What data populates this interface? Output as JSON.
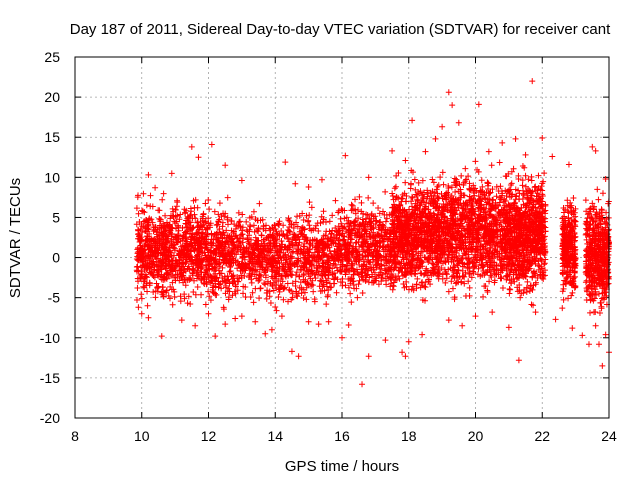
{
  "chart_data": {
    "type": "scatter",
    "title": "Day 187 of 2011, Sidereal Day-to-day VTEC variation (SDTVAR) for receiver cant",
    "xlabel": "GPS time / hours",
    "ylabel": "SDTVAR / TECUs",
    "xlim": [
      8,
      24
    ],
    "ylim": [
      -20,
      25
    ],
    "xticks": [
      8,
      10,
      12,
      14,
      16,
      18,
      20,
      22,
      24
    ],
    "yticks": [
      -20,
      -15,
      -10,
      -5,
      0,
      5,
      10,
      15,
      20,
      25
    ],
    "xtick_labels": [
      "8",
      "10",
      "12",
      "14",
      "16",
      "18",
      "20",
      "22",
      "24"
    ],
    "ytick_labels": [
      "-20",
      "-15",
      "-10",
      "-5",
      "0",
      "5",
      "10",
      "15",
      "20",
      "25"
    ],
    "grid": true,
    "marker": "+",
    "color": "#ff0000",
    "series": [
      {
        "name": "SDTVAR",
        "points": [
          [
            9.9,
            -6.2
          ],
          [
            10.0,
            -7.0
          ],
          [
            10.2,
            -7.5
          ],
          [
            10.6,
            -9.8
          ],
          [
            11.2,
            -7.8
          ],
          [
            11.6,
            -8.5
          ],
          [
            12.0,
            -7.0
          ],
          [
            12.2,
            -9.8
          ],
          [
            12.5,
            -8.3
          ],
          [
            12.8,
            -7.6
          ],
          [
            13.0,
            -7.3
          ],
          [
            13.4,
            -8.0
          ],
          [
            13.7,
            -9.5
          ],
          [
            13.9,
            -9.0
          ],
          [
            14.2,
            -7.3
          ],
          [
            14.5,
            -11.7
          ],
          [
            14.7,
            -12.3
          ],
          [
            15.0,
            -8.0
          ],
          [
            15.3,
            -8.3
          ],
          [
            15.6,
            -8.0
          ],
          [
            16.0,
            -10.0
          ],
          [
            16.2,
            -8.4
          ],
          [
            16.6,
            -15.8
          ],
          [
            16.8,
            -12.3
          ],
          [
            17.3,
            -10.3
          ],
          [
            17.8,
            -11.8
          ],
          [
            17.9,
            -12.3
          ],
          [
            18.0,
            -10.5
          ],
          [
            18.4,
            -9.6
          ],
          [
            19.2,
            -7.8
          ],
          [
            19.6,
            -8.5
          ],
          [
            20.0,
            -7.3
          ],
          [
            20.5,
            -6.8
          ],
          [
            21.0,
            -8.7
          ],
          [
            21.3,
            -12.8
          ],
          [
            21.8,
            -6.8
          ],
          [
            22.4,
            -7.7
          ],
          [
            22.6,
            -6.3
          ],
          [
            22.9,
            -8.8
          ],
          [
            23.2,
            -9.7
          ],
          [
            23.4,
            -10.8
          ],
          [
            23.6,
            -8.5
          ],
          [
            23.7,
            -10.8
          ],
          [
            23.8,
            -13.5
          ],
          [
            23.9,
            -9.6
          ],
          [
            24.0,
            -11.8
          ],
          [
            10.2,
            10.3
          ],
          [
            10.4,
            8.7
          ],
          [
            10.9,
            10.5
          ],
          [
            11.5,
            13.8
          ],
          [
            11.7,
            12.5
          ],
          [
            12.1,
            14.1
          ],
          [
            12.5,
            11.5
          ],
          [
            13.0,
            9.6
          ],
          [
            14.3,
            11.9
          ],
          [
            14.6,
            9.2
          ],
          [
            15.0,
            8.8
          ],
          [
            15.4,
            9.7
          ],
          [
            16.1,
            12.7
          ],
          [
            16.8,
            10.0
          ],
          [
            17.5,
            13.3
          ],
          [
            17.9,
            12.1
          ],
          [
            18.1,
            17.1
          ],
          [
            18.5,
            13.2
          ],
          [
            18.8,
            14.8
          ],
          [
            19.0,
            16.3
          ],
          [
            19.2,
            20.6
          ],
          [
            19.3,
            19.0
          ],
          [
            19.5,
            16.8
          ],
          [
            20.1,
            19.1
          ],
          [
            20.4,
            13.2
          ],
          [
            20.8,
            14.3
          ],
          [
            21.2,
            14.8
          ],
          [
            21.5,
            12.8
          ],
          [
            21.7,
            22.0
          ],
          [
            22.0,
            14.9
          ],
          [
            22.3,
            12.6
          ],
          [
            22.8,
            11.6
          ],
          [
            23.5,
            13.8
          ],
          [
            23.6,
            13.3
          ],
          [
            23.9,
            9.8
          ]
        ],
        "bands": [
          {
            "x": [
              9.85,
              10.6
            ],
            "y": [
              -5.5,
              7.5
            ],
            "n": 320
          },
          {
            "x": [
              10.6,
              12.0
            ],
            "y": [
              -5.5,
              7.0
            ],
            "n": 600
          },
          {
            "x": [
              12.0,
              14.0
            ],
            "y": [
              -6.0,
              6.5
            ],
            "n": 650
          },
          {
            "x": [
              14.0,
              16.0
            ],
            "y": [
              -6.0,
              6.5
            ],
            "n": 600
          },
          {
            "x": [
              16.0,
              17.5
            ],
            "y": [
              -5.0,
              7.5
            ],
            "n": 520
          },
          {
            "x": [
              17.5,
              19.0
            ],
            "y": [
              -4.5,
              10.0
            ],
            "n": 900
          },
          {
            "x": [
              19.0,
              21.0
            ],
            "y": [
              -4.5,
              11.0
            ],
            "n": 1100
          },
          {
            "x": [
              21.0,
              22.1
            ],
            "y": [
              -5.0,
              10.5
            ],
            "n": 800
          },
          {
            "x": [
              22.6,
              23.0
            ],
            "y": [
              -5.5,
              8.0
            ],
            "n": 320
          },
          {
            "x": [
              23.3,
              24.0
            ],
            "y": [
              -6.5,
              7.5
            ],
            "n": 520
          }
        ]
      }
    ]
  }
}
